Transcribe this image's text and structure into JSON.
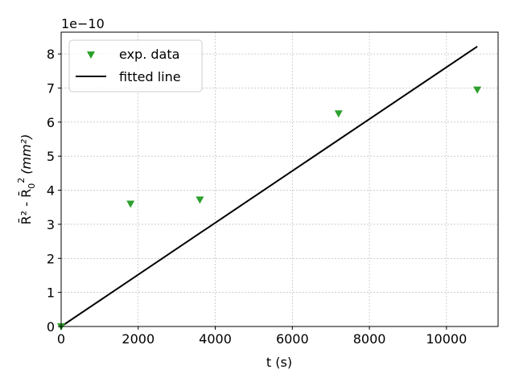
{
  "chart_data": {
    "type": "scatter",
    "xlabel": "t (s)",
    "ylabel_main": "R̄² - R̄",
    "ylabel_sub": "0",
    "ylabel_sup": "2",
    "ylabel_unit": "(mm²)",
    "y_offset_text": "1e−10",
    "xlim": [
      0,
      11340
    ],
    "ylim": [
      0,
      8.64
    ],
    "y_scale_factor": 1e-10,
    "xticks": [
      0,
      2000,
      4000,
      6000,
      8000,
      10000
    ],
    "yticks": [
      0,
      1,
      2,
      3,
      4,
      5,
      6,
      7,
      8
    ],
    "grid": true,
    "legend_position": "top-left",
    "series": [
      {
        "name": "exp. data",
        "kind": "scatter",
        "marker": "triangle-down",
        "color": "#2ca02c",
        "x": [
          0,
          1800,
          3600,
          7200,
          10800
        ],
        "y": [
          0.0,
          3.6,
          3.72,
          6.25,
          6.95
        ]
      },
      {
        "name": "fitted line",
        "kind": "line",
        "color": "#000000",
        "x": [
          0,
          10800
        ],
        "y": [
          0.0,
          8.22
        ]
      }
    ]
  }
}
